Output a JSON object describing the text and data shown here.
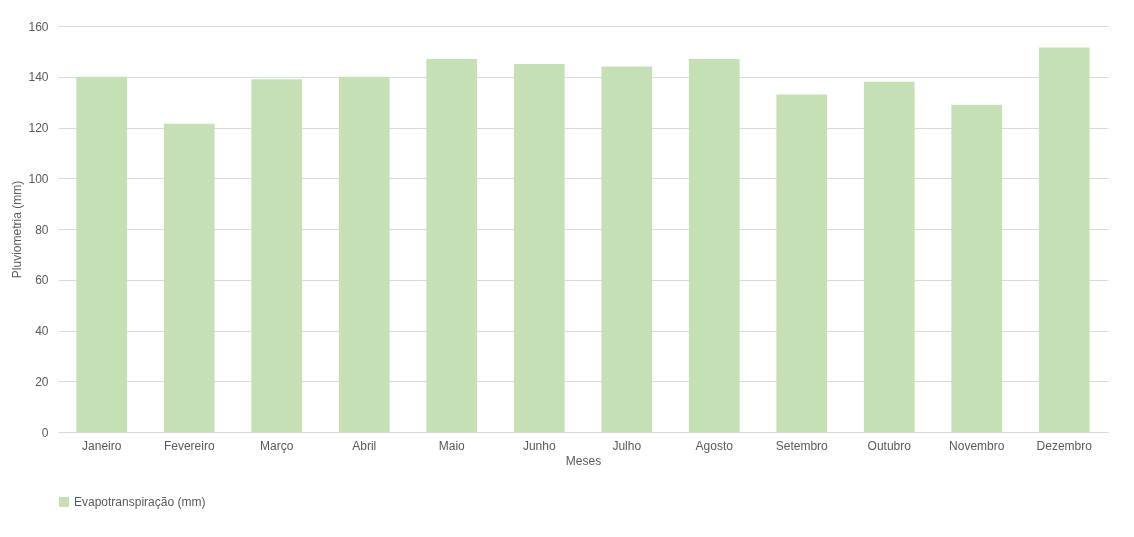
{
  "chart_data": {
    "type": "bar",
    "xlabel": "Meses",
    "ylabel": "Pluviometria (mm)",
    "categories": [
      "Janeiro",
      "Fevereiro",
      "Março",
      "Abril",
      "Maio",
      "Junho",
      "Julho",
      "Agosto",
      "Setembro",
      "Outubro",
      "Novembro",
      "Dezembro"
    ],
    "series": [
      {
        "name": "Evapotranspiração (mm)",
        "color": "#c5e0b4",
        "values": [
          140,
          121.5,
          139,
          140,
          147,
          145,
          144,
          147,
          133,
          138,
          129,
          151.5
        ]
      }
    ],
    "ylim": [
      0,
      160
    ],
    "yticks": [
      0,
      20,
      40,
      60,
      80,
      100,
      120,
      140,
      160
    ],
    "grid": "y",
    "legend": "bottom"
  }
}
